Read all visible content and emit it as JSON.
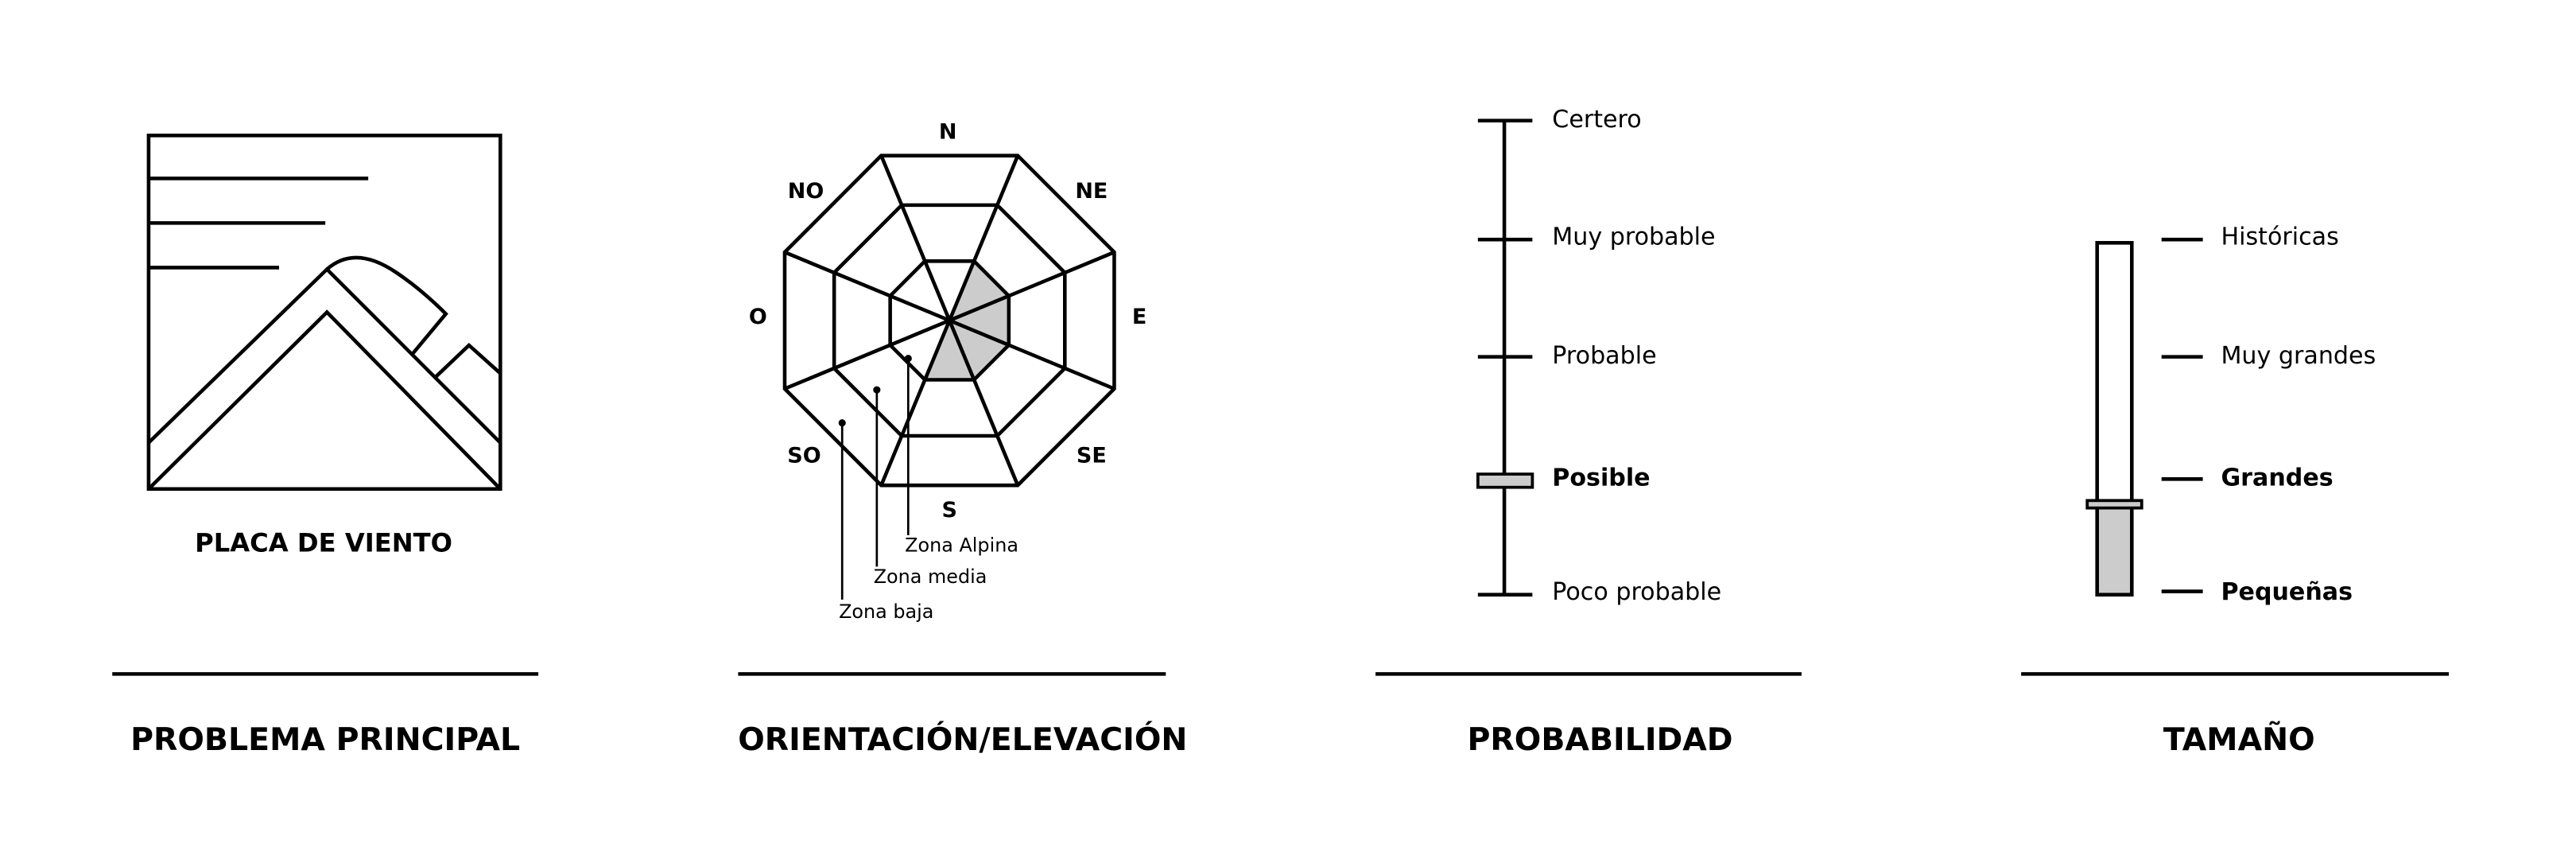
{
  "colors": {
    "ink": "#000000",
    "highlight": "#cccccc",
    "background": "#ffffff"
  },
  "problem": {
    "title": "PROBLEMA PRINCIPAL",
    "icon": "wind-slab-icon",
    "label": "PLACA DE VIENTO"
  },
  "aspect": {
    "title": "ORIENTACIÓN/ELEVACIÓN",
    "directions": [
      "N",
      "NE",
      "E",
      "SE",
      "S",
      "SO",
      "O",
      "NO"
    ],
    "zones": [
      "Zona Alpina",
      "Zona media",
      "Zona baja"
    ],
    "highlighted": {
      "Zona Alpina": [
        "NE",
        "E",
        "SE",
        "S"
      ],
      "Zona media": [],
      "Zona baja": []
    }
  },
  "likelihood": {
    "title": "PROBABILIDAD",
    "levels": [
      "Certero",
      "Muy probable",
      "Probable",
      "Posible",
      "Poco probable"
    ],
    "selected": "Posible"
  },
  "size": {
    "title": "TAMAÑO",
    "levels": [
      "Históricas",
      "Muy grandes",
      "Grandes",
      "Pequeñas"
    ],
    "selected_range": [
      "Pequeñas",
      "Grandes"
    ]
  }
}
